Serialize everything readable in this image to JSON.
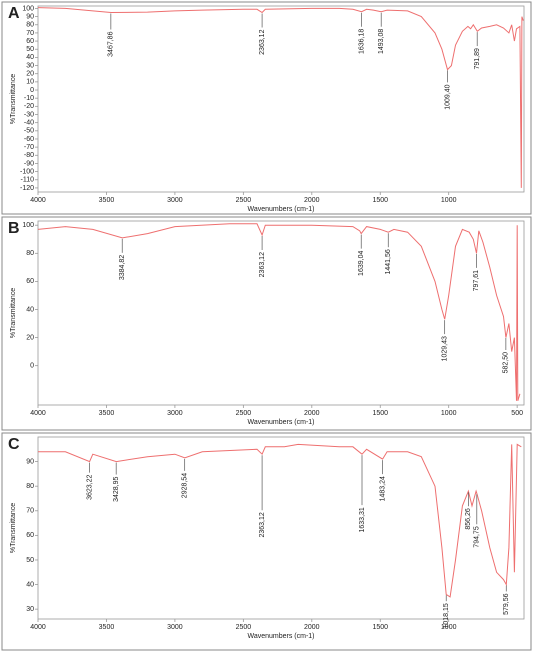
{
  "chart_data": [
    {
      "type": "line",
      "panel": "A",
      "xlabel": "Wavenumbers (cm-1)",
      "ylabel": "%Transmittance",
      "color": "#ee6f6f",
      "xlim": [
        4000,
        450
      ],
      "ylim": [
        -125,
        103
      ],
      "xticks": [
        4000,
        3500,
        3000,
        2500,
        2000,
        1500,
        1000
      ],
      "yticks": [
        100,
        90,
        80,
        70,
        60,
        50,
        40,
        30,
        20,
        10,
        0,
        -10,
        -20,
        -30,
        -40,
        -50,
        -60,
        -70,
        -80,
        -90,
        -100,
        -110,
        -120
      ],
      "x": [
        4000,
        3800,
        3600,
        3467,
        3200,
        3000,
        2800,
        2500,
        2400,
        2363,
        2340,
        2000,
        1800,
        1700,
        1636,
        1600,
        1550,
        1493,
        1450,
        1300,
        1200,
        1100,
        1050,
        1009,
        980,
        950,
        900,
        860,
        840,
        820,
        791,
        760,
        700,
        650,
        600,
        560,
        540,
        520,
        505,
        480,
        470,
        465,
        455
      ],
      "values": [
        101,
        100,
        97,
        95,
        95.5,
        97,
        98,
        99,
        99,
        95,
        99,
        100,
        100,
        99,
        96,
        99,
        98,
        96,
        98,
        97,
        90,
        70,
        50,
        25,
        30,
        55,
        72,
        78,
        75,
        80,
        72,
        76,
        78,
        80,
        76,
        70,
        80,
        60,
        75,
        78,
        -120,
        90,
        85
      ],
      "annotations": [
        {
          "x": 3467.86,
          "label": "3467,86"
        },
        {
          "x": 2363.12,
          "label": "2363,12"
        },
        {
          "x": 1636.18,
          "label": "1636,18"
        },
        {
          "x": 1493.08,
          "label": "1493,08"
        },
        {
          "x": 1009.4,
          "label": "1009,40"
        },
        {
          "x": 791.89,
          "label": "791,89"
        }
      ]
    },
    {
      "type": "line",
      "panel": "B",
      "xlabel": "Wavenumbers (cm-1)",
      "ylabel": "%Transmittance",
      "color": "#ee6f6f",
      "xlim": [
        4000,
        450
      ],
      "ylim": [
        -28,
        103
      ],
      "xticks": [
        4000,
        3500,
        3000,
        2500,
        2000,
        1500,
        1000,
        500
      ],
      "yticks": [
        100,
        80,
        60,
        40,
        20,
        0
      ],
      "x": [
        4000,
        3800,
        3600,
        3384,
        3200,
        3000,
        2600,
        2400,
        2363,
        2340,
        2000,
        1700,
        1650,
        1639,
        1600,
        1500,
        1441,
        1400,
        1300,
        1200,
        1100,
        1050,
        1029,
        1000,
        950,
        900,
        850,
        820,
        797,
        780,
        750,
        700,
        650,
        600,
        582,
        560,
        540,
        520,
        505,
        500,
        495,
        480
      ],
      "values": [
        97,
        99,
        97,
        91,
        94,
        99,
        101,
        101,
        93,
        100,
        100,
        99,
        96,
        94,
        99,
        97,
        95,
        97,
        95,
        85,
        60,
        40,
        33,
        50,
        85,
        97,
        95,
        90,
        80,
        96,
        88,
        70,
        50,
        35,
        20,
        30,
        10,
        20,
        -25,
        100,
        -25,
        -20
      ],
      "annotations": [
        {
          "x": 3384.82,
          "label": "3384,82"
        },
        {
          "x": 2363.12,
          "label": "2363,12"
        },
        {
          "x": 1639.04,
          "label": "1639,04"
        },
        {
          "x": 1441.56,
          "label": "1441,56"
        },
        {
          "x": 1029.43,
          "label": "1029,43"
        },
        {
          "x": 797.61,
          "label": "797,61"
        },
        {
          "x": 582.5,
          "label": "582,50"
        }
      ]
    },
    {
      "type": "line",
      "panel": "C",
      "xlabel": "Wavenumbers (cm-1)",
      "ylabel": "%Transmittance",
      "color": "#ee6f6f",
      "xlim": [
        4000,
        450
      ],
      "ylim": [
        26,
        100
      ],
      "xticks": [
        4000,
        3500,
        3000,
        2500,
        2000,
        1500,
        1000
      ],
      "yticks": [
        90,
        80,
        70,
        60,
        50,
        40,
        30
      ],
      "x": [
        4000,
        3800,
        3623,
        3600,
        3428,
        3200,
        3000,
        2928,
        2800,
        2400,
        2363,
        2340,
        2200,
        2100,
        1800,
        1700,
        1633,
        1600,
        1483,
        1450,
        1300,
        1200,
        1100,
        1050,
        1018,
        990,
        950,
        900,
        856,
        830,
        800,
        794,
        760,
        700,
        650,
        600,
        579,
        560,
        540,
        520,
        500,
        470
      ],
      "values": [
        94,
        94,
        90,
        93,
        90,
        92,
        93,
        91.5,
        94,
        95,
        93,
        96,
        96,
        97,
        96,
        96,
        93,
        95,
        91,
        94,
        94,
        92,
        80,
        55,
        36,
        35,
        50,
        72,
        78,
        72,
        78,
        77,
        70,
        55,
        45,
        42,
        40,
        55,
        97,
        45,
        97,
        96
      ],
      "annotations": [
        {
          "x": 3623.22,
          "label": "3623,22"
        },
        {
          "x": 3428.95,
          "label": "3428,95"
        },
        {
          "x": 2928.54,
          "label": "2928,54"
        },
        {
          "x": 2363.12,
          "label": "2363,12"
        },
        {
          "x": 1633.31,
          "label": "1633,31"
        },
        {
          "x": 1483.24,
          "label": "1483,24"
        },
        {
          "x": 1018.15,
          "label": "1018,15"
        },
        {
          "x": 856.26,
          "label": "856,26"
        },
        {
          "x": 794.75,
          "label": "794,75"
        },
        {
          "x": 579.56,
          "label": "579,56"
        }
      ]
    }
  ]
}
